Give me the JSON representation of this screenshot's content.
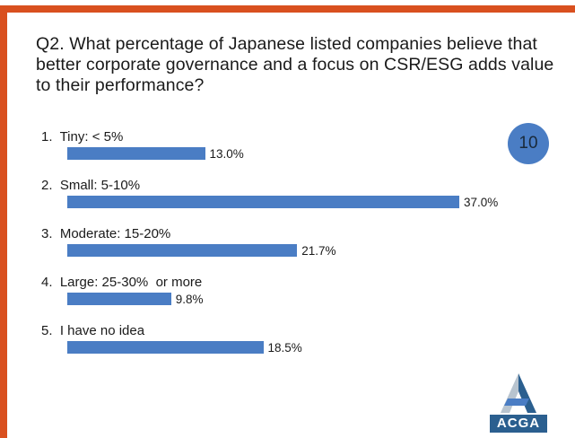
{
  "slide": {
    "question": "Q2. What percentage of Japanese listed companies believe that better corporate governance and a focus on CSR/ESG adds value to their performance?",
    "page_badge": "10",
    "logo_text": "ACGA",
    "colors": {
      "frame": "#d9501f",
      "bar": "#4a7dc4",
      "badge": "#4a7dc4",
      "logo": "#2b5f8f"
    }
  },
  "chart_data": {
    "type": "bar",
    "orientation": "horizontal",
    "title": "Q2. What percentage of Japanese listed companies believe that better corporate governance and a focus on CSR/ESG adds value to their performance?",
    "categories": [
      "1.  Tiny: < 5%",
      "2.  Small: 5-10%",
      "3.  Moderate: 15-20%",
      "4.  Large: 25-30%  or more",
      "5.  I have no idea"
    ],
    "values": [
      13.0,
      37.0,
      21.7,
      9.8,
      18.5
    ],
    "value_labels": [
      "13.0%",
      "37.0%",
      "21.7%",
      "9.8%",
      "18.5%"
    ],
    "unit": "%",
    "xlim": [
      0,
      40
    ],
    "grid": false,
    "legend": "none"
  }
}
